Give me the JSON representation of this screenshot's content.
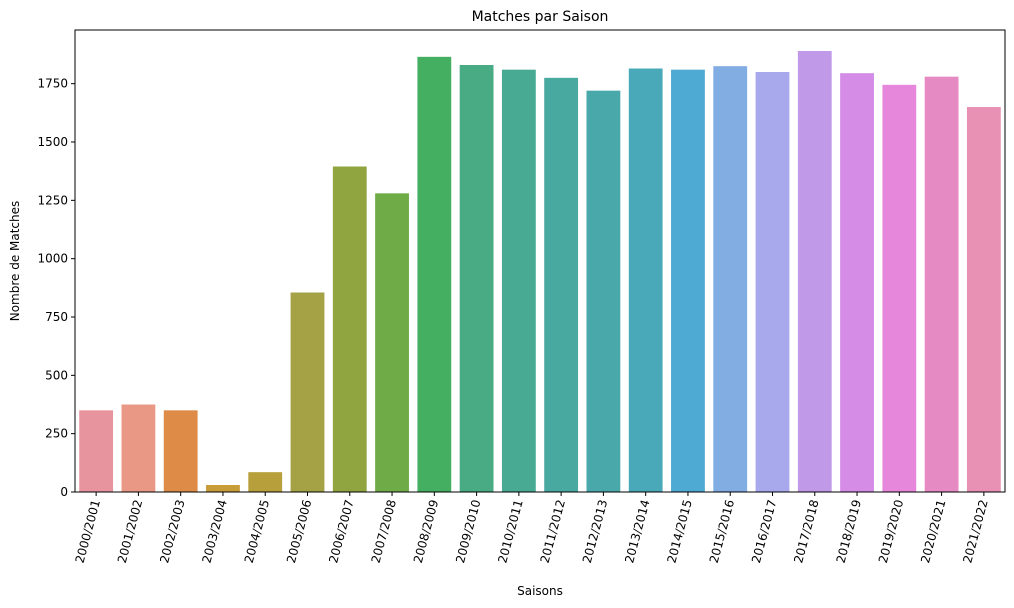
{
  "chart_data": {
    "type": "bar",
    "title": "Matches par Saison",
    "xlabel": "Saisons",
    "ylabel": "Nombre de Matches",
    "categories": [
      "2000/2001",
      "2001/2002",
      "2002/2003",
      "2003/2004",
      "2004/2005",
      "2005/2006",
      "2006/2007",
      "2007/2008",
      "2008/2009",
      "2009/2010",
      "2010/2011",
      "2011/2012",
      "2012/2013",
      "2013/2014",
      "2014/2015",
      "2015/2016",
      "2016/2017",
      "2017/2018",
      "2018/2019",
      "2019/2020",
      "2020/2021",
      "2021/2022"
    ],
    "values": [
      350,
      375,
      350,
      30,
      85,
      855,
      1395,
      1280,
      1865,
      1830,
      1810,
      1775,
      1720,
      1815,
      1810,
      1825,
      1800,
      1890,
      1795,
      1745,
      1780,
      1650
    ],
    "colors": [
      "#e8949f",
      "#e89884",
      "#de8b47",
      "#c99c3a",
      "#b7a03c",
      "#a4a245",
      "#90a53f",
      "#6fab46",
      "#45af61",
      "#48ab83",
      "#48aa93",
      "#47a99f",
      "#49a8a9",
      "#4aa9b9",
      "#4ea9d3",
      "#82ade3",
      "#a8a8ec",
      "#c09ae9",
      "#d58ce6",
      "#e787dc",
      "#e68ac3",
      "#e891b4"
    ],
    "ylim": [
      0,
      1980
    ],
    "yticks": [
      0,
      250,
      500,
      750,
      1000,
      1250,
      1500,
      1750
    ],
    "grid": false,
    "legend": "none"
  }
}
